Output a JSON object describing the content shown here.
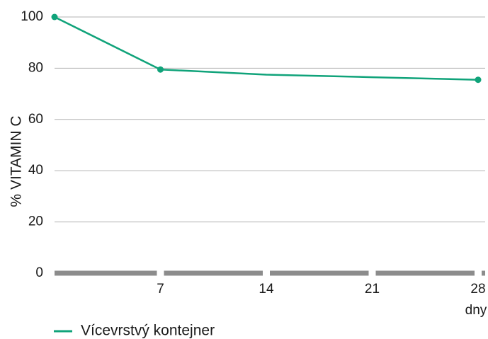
{
  "chart_data": {
    "type": "line",
    "title": "",
    "ylabel": "% VITAMIN C",
    "xunit": "dny",
    "x": [
      0,
      7,
      14,
      21,
      28
    ],
    "xticks": [
      "7",
      "14",
      "21",
      "28"
    ],
    "ylim": [
      0,
      100
    ],
    "yticks": [
      "0",
      "20",
      "40",
      "60",
      "80",
      "100"
    ],
    "grid": true,
    "legend_position": "bottom-left",
    "series": [
      {
        "name": "Vícevrstvý kontejner",
        "color": "#10a37a",
        "x": [
          0,
          7,
          14,
          21,
          28
        ],
        "values": [
          100,
          79.5,
          77.5,
          76.5,
          75.5
        ],
        "markers_at": [
          0,
          7,
          28
        ]
      }
    ],
    "colors": {
      "line": "#10a37a",
      "grid": "#b3b3b3",
      "baseline": "#8c8c8c"
    }
  }
}
